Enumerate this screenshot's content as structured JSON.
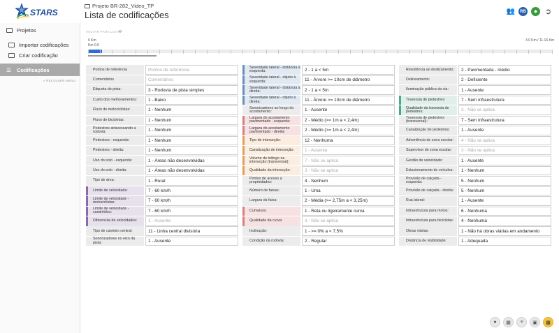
{
  "header": {
    "logo_text": "STARS",
    "project": "Projeto BR-282_Video_TP",
    "title": "Lista de codificações",
    "avatar_initials": "RB"
  },
  "sidebar": {
    "items": [
      {
        "label": "Projetos"
      },
      {
        "label": "Importar codificações"
      },
      {
        "label": "Criar codificação"
      },
      {
        "label": "Codificações"
      }
    ],
    "collapse_label": "RECOLHER MENU"
  },
  "timeline": {
    "back_label": "VOLTAR PARA LISTA",
    "start_km": "0 Km",
    "current_km": "Km 0.0",
    "range_label": "3.0 Km / 11.16 Km"
  },
  "columns": [
    [
      {
        "label": "Pontos de referência",
        "value": "Pontos de referência",
        "ph": true,
        "accent": ""
      },
      {
        "label": "Comentários",
        "value": "Comentários",
        "ph": true,
        "accent": ""
      },
      {
        "label": "Etiqueta de pista:",
        "value": "3 - Rodovia de pista simples",
        "accent": ""
      },
      {
        "label": "Custo dos melhoramentos:",
        "value": "1 - Baixo",
        "accent": ""
      },
      {
        "label": "Fluxo de motociclistas:",
        "value": "1 - Nenhum",
        "accent": ""
      },
      {
        "label": "Fluxo de bicicletas:",
        "value": "1 - Nenhum",
        "accent": ""
      },
      {
        "label": "Pedestres atravessando a rodovia:",
        "value": "1 - Nenhum",
        "accent": ""
      },
      {
        "label": "Pedestres - esquerda:",
        "value": "1 - Nenhum",
        "accent": ""
      },
      {
        "label": "Pedestres - direita:",
        "value": "1 - Nenhum",
        "accent": ""
      },
      {
        "label": "Uso do solo - esquerda:",
        "value": "1 - Áreas não desenvolvidas",
        "accent": ""
      },
      {
        "label": "Uso do solo - direita:",
        "value": "1 - Áreas não desenvolvidas",
        "accent": ""
      },
      {
        "label": "Tipo de área:",
        "value": "1 - Rural",
        "accent": ""
      },
      {
        "label": "Limite de velocidade:",
        "value": "7 - 60 km/h",
        "accent": "purple"
      },
      {
        "label": "Limite de velocidade - motociclistas:",
        "value": "7 - 60 km/h",
        "accent": "purple"
      },
      {
        "label": "Limite de velocidade - caminhões:",
        "value": "7 - 60 km/h",
        "accent": "purple"
      },
      {
        "label": "Diferencial de velocidades:",
        "value": "1 - Ausente",
        "ph": true,
        "accent": "purple"
      },
      {
        "label": "Tipo de canteiro central:",
        "value": "11 - Linha central divisória",
        "accent": ""
      },
      {
        "label": "Sonorizadores no eixo da pista:",
        "value": "1 - Ausente",
        "accent": ""
      }
    ],
    [
      {
        "label": "Severidade lateral - distância à esquerda:",
        "value": "2 - 1 a < 5m",
        "accent": "blue"
      },
      {
        "label": "Severidade lateral - objeto à esquerda:",
        "value": "11 - Árvore >= 10cm de diâmetro",
        "accent": "blue"
      },
      {
        "label": "Severidade lateral - distância à direita:",
        "value": "2 - 1 a < 5m",
        "accent": "blue"
      },
      {
        "label": "Severidade lateral - objeto à direita:",
        "value": "11 - Árvore >= 10cm de diâmetro",
        "accent": "blue"
      },
      {
        "label": "Sonorizadores ao longo do acostamento:",
        "value": "1 - Ausente",
        "accent": ""
      },
      {
        "label": "Largura do acostamento pavimentado - esquerda:",
        "value": "2 - Médio (>= 1m a < 2,4m)",
        "accent": "red"
      },
      {
        "label": "Largura do acostamento pavimentado - direita:",
        "value": "2 - Médio (>= 1m a < 2,4m)",
        "accent": "red"
      },
      {
        "label": "Tipo de interseção:",
        "value": "12 - Nenhuma",
        "accent": "orange"
      },
      {
        "label": "Canalização de interseção:",
        "value": "1 - Ausente",
        "ph": true,
        "accent": "orange"
      },
      {
        "label": "Volume de tráfego na interseção (transversal):",
        "value": "7 - Não se aplica",
        "ph": true,
        "accent": "orange"
      },
      {
        "label": "Qualidade da interseção:",
        "value": "3 - Não se aplica",
        "ph": true,
        "accent": "orange"
      },
      {
        "label": "Pontos de acesso a propriedades:",
        "value": "4 - Nenhum",
        "accent": ""
      },
      {
        "label": "Número de faixas:",
        "value": "1 - Uma",
        "accent": ""
      },
      {
        "label": "Largura da faixa:",
        "value": "2 - Média (>= 2,75m a < 3,25m)",
        "accent": ""
      },
      {
        "label": "Curvatura:",
        "value": "1 - Reta ou ligeiramente curva",
        "accent": "red"
      },
      {
        "label": "Qualidade da curva:",
        "value": "3 - Não se aplica",
        "ph": true,
        "accent": "red"
      },
      {
        "label": "Inclinação:",
        "value": "1 - >= 0% a < 7,5%",
        "accent": ""
      },
      {
        "label": "Condição da rodovia:",
        "value": "2 - Regular",
        "accent": ""
      }
    ],
    [
      {
        "label": "Resistência ao deslizamento:",
        "value": "2 - Pavimentada - médio",
        "accent": ""
      },
      {
        "label": "Delineamento:",
        "value": "2 - Deficiente",
        "accent": ""
      },
      {
        "label": "Iluminação pública da via:",
        "value": "1 - Ausente",
        "accent": ""
      },
      {
        "label": "Travessia de pedestres:",
        "value": "7 - Sem infraestrutura",
        "accent": "teal"
      },
      {
        "label": "Qualidade da travessia de pedestres:",
        "value": "3 - Não se aplica",
        "ph": true,
        "accent": "teal"
      },
      {
        "label": "Travessia de pedestres (transversal):",
        "value": "7 - Sem infraestrutura",
        "accent": ""
      },
      {
        "label": "Canalização de pedestres:",
        "value": "1 - Ausente",
        "accent": ""
      },
      {
        "label": "Advertência de zona escolar:",
        "value": "4 - Não se aplica",
        "ph": true,
        "accent": ""
      },
      {
        "label": "Supervisor de zona escolar:",
        "value": "3 - Não se aplica",
        "ph": true,
        "accent": ""
      },
      {
        "label": "Gestão de velocidade:",
        "value": "1 - Ausente",
        "accent": ""
      },
      {
        "label": "Estacionamento de veículos:",
        "value": "1 - Nenhum",
        "accent": ""
      },
      {
        "label": "Provisão de calçada - esquerda:",
        "value": "5 - Nenhum",
        "accent": ""
      },
      {
        "label": "Provisão de calçada - direita:",
        "value": "5 - Nenhum",
        "accent": ""
      },
      {
        "label": "Rua lateral:",
        "value": "1 - Ausente",
        "accent": ""
      },
      {
        "label": "Infraestrutura para motos:",
        "value": "6 - Nenhuma",
        "accent": ""
      },
      {
        "label": "Infraestrutura para bicicletas:",
        "value": "4 - Nenhuma",
        "accent": ""
      },
      {
        "label": "Obras viárias:",
        "value": "1 - Não há obras viárias em andamento",
        "accent": ""
      },
      {
        "label": "Distância de visibilidade:",
        "value": "1 - Adequada",
        "accent": ""
      }
    ]
  ],
  "tools": [
    "mic-icon",
    "table-icon",
    "list-icon",
    "lock-icon",
    "save-icon"
  ]
}
